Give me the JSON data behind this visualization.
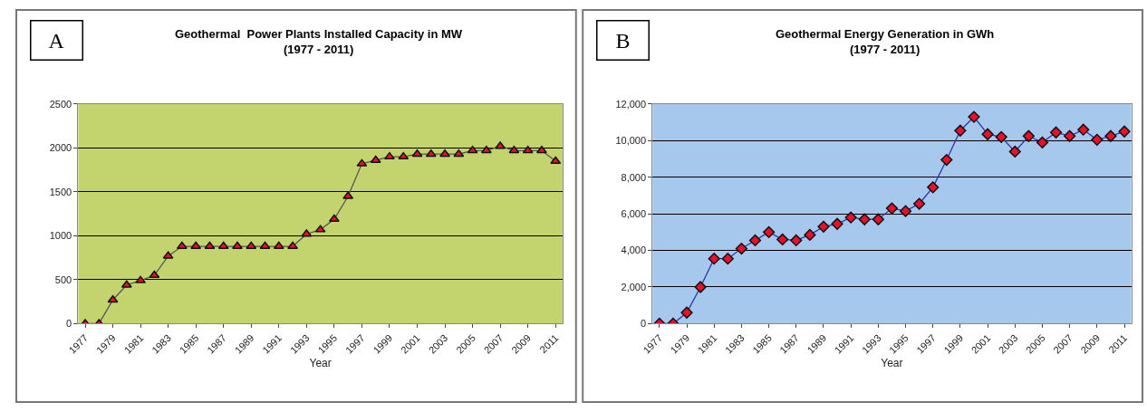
{
  "chart_data": [
    {
      "type": "line",
      "title": "Geothermal  Power Plants Installed Capacity in MW\n(1977 - 2011)",
      "xlabel": "Year",
      "annotations": [
        "A"
      ],
      "categories": [
        "1977",
        null,
        "1979",
        null,
        "1981",
        null,
        "1983",
        null,
        "1985",
        null,
        "1987",
        null,
        "1989",
        null,
        "1991",
        null,
        "1993",
        null,
        "1995",
        null,
        "1997",
        null,
        "1999",
        null,
        "2001",
        null,
        "2003",
        null,
        "2005",
        null,
        "2007",
        null,
        "2009",
        null,
        "2011"
      ],
      "series": [
        {
          "color": "#e8102a",
          "values": [
            0,
            0,
            270,
            440,
            490,
            550,
            770,
            880,
            880,
            880,
            880,
            880,
            880,
            880,
            880,
            880,
            1020,
            1070,
            1190,
            1450,
            1820,
            1860,
            1900,
            1900,
            1930,
            1930,
            1930,
            1930,
            1970,
            1970,
            2020,
            1970,
            1970,
            1970,
            1850
          ]
        }
      ],
      "marker": "triangle",
      "grid": "y",
      "ylim": [
        0,
        2500
      ],
      "yticks": [
        0,
        500,
        1000,
        1500,
        2000,
        2500
      ]
    },
    {
      "type": "line",
      "title": "Geothermal Energy Generation in GWh\n(1977 - 2011)",
      "xlabel": "Year",
      "annotations": [
        "B"
      ],
      "categories": [
        "1977",
        null,
        "1979",
        null,
        "1981",
        null,
        "1983",
        null,
        "1985",
        null,
        "1987",
        null,
        "1989",
        null,
        "1991",
        null,
        "1993",
        null,
        "1995",
        null,
        "1997",
        null,
        "1999",
        null,
        "2001",
        null,
        "2003",
        null,
        "2005",
        null,
        "2007",
        null,
        "2009",
        null,
        "2011"
      ],
      "series": [
        {
          "color": "#e8102a",
          "values": [
            0,
            0,
            600,
            2000,
            3550,
            3550,
            4100,
            4550,
            5000,
            4600,
            4550,
            4850,
            5300,
            5450,
            5800,
            5700,
            5700,
            6300,
            6150,
            6550,
            7450,
            8950,
            10550,
            11300,
            10350,
            10200,
            9400,
            10250,
            9900,
            10450,
            10250,
            10600,
            10050,
            10250,
            10500
          ]
        }
      ],
      "marker": "diamond",
      "grid": "y",
      "ylim": [
        0,
        12000
      ],
      "yticks": [
        {
          "value": 0,
          "label": "0"
        },
        {
          "value": 2000,
          "label": "2,000"
        },
        {
          "value": 4000,
          "label": "4,000"
        },
        {
          "value": 6000,
          "label": "6,000"
        },
        {
          "value": 8000,
          "label": "8,000"
        },
        {
          "value": 10000,
          "label": "10,000"
        },
        {
          "value": 12000,
          "label": "12,000"
        }
      ]
    }
  ]
}
